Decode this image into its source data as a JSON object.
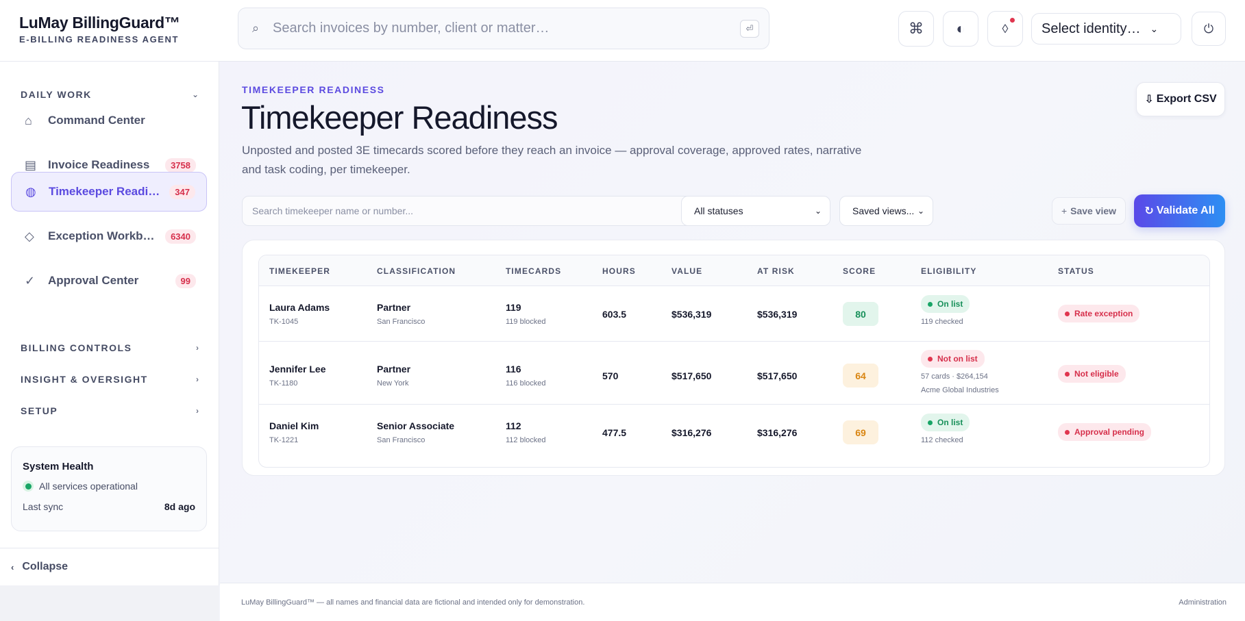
{
  "brand": {
    "name": "LuMay BillingGuard™",
    "tagline": "E-BILLING READINESS AGENT"
  },
  "header": {
    "search_placeholder": "Search invoices by number, client or matter…",
    "identity_label": "Select identity…"
  },
  "sidebar": {
    "groups": [
      {
        "label": "DAILY WORK",
        "expanded": true
      },
      {
        "label": "BILLING CONTROLS",
        "expanded": false
      },
      {
        "label": "INSIGHT & OVERSIGHT",
        "expanded": false
      },
      {
        "label": "SETUP",
        "expanded": false
      }
    ],
    "items": [
      {
        "label": "Command Center",
        "icon": "home-icon",
        "badge": ""
      },
      {
        "label": "Invoice Readiness",
        "icon": "document-list-icon",
        "badge": "3758"
      },
      {
        "label": "Timekeeper Readiness",
        "icon": "gauge-icon",
        "badge": "347",
        "active": true
      },
      {
        "label": "Exception Workbench",
        "icon": "diamond-icon",
        "badge": "6340"
      },
      {
        "label": "Approval Center",
        "icon": "check-icon",
        "badge": "99"
      }
    ],
    "health": {
      "title": "System Health",
      "status": "All services operational",
      "sync_label": "Last sync",
      "sync_value": "8d ago"
    },
    "collapse_label": "Collapse"
  },
  "main": {
    "eyebrow": "TIMEKEEPER READINESS",
    "title": "Timekeeper Readiness",
    "description": "Unposted and posted 3E timecards scored before they reach an invoice — approval coverage, approved rates, narrative and task coding, per timekeeper.",
    "export_label": "Export CSV",
    "filter_placeholder": "Search timekeeper name or number...",
    "status_select": "All statuses",
    "saved_views": "Saved views...",
    "save_view_label": "Save view",
    "validate_label": "Validate All"
  },
  "table": {
    "columns": [
      "TIMEKEEPER",
      "CLASSIFICATION",
      "TIMECARDS",
      "HOURS",
      "VALUE",
      "AT RISK",
      "SCORE",
      "ELIGIBILITY",
      "STATUS"
    ],
    "rows": [
      {
        "name": "Laura Adams",
        "id": "TK-1045",
        "classification": "Partner",
        "office": "San Francisco",
        "timecards": "119",
        "timecards_sub": "119 blocked",
        "hours": "603.5",
        "value": "$536,319",
        "at_risk": "$536,319",
        "score": "80",
        "score_level": "good",
        "eligibility": "On list",
        "eligibility_ok": true,
        "eligibility_sub": [
          "119 checked"
        ],
        "status": "Rate exception"
      },
      {
        "name": "Jennifer Lee",
        "id": "TK-1180",
        "classification": "Partner",
        "office": "New York",
        "timecards": "116",
        "timecards_sub": "116 blocked",
        "hours": "570",
        "value": "$517,650",
        "at_risk": "$517,650",
        "score": "64",
        "score_level": "warn",
        "eligibility": "Not on list",
        "eligibility_ok": false,
        "eligibility_sub": [
          "57 cards · $264,154",
          "Acme Global Industries"
        ],
        "status": "Not eligible"
      },
      {
        "name": "Daniel Kim",
        "id": "TK-1221",
        "classification": "Senior Associate",
        "office": "San Francisco",
        "timecards": "112",
        "timecards_sub": "112 blocked",
        "hours": "477.5",
        "value": "$316,276",
        "at_risk": "$316,276",
        "score": "69",
        "score_level": "warn",
        "eligibility": "On list",
        "eligibility_ok": true,
        "eligibility_sub": [
          "112 checked"
        ],
        "status": "Approval pending"
      }
    ]
  },
  "footer": {
    "disclaimer": "LuMay BillingGuard™ — all names and financial data are fictional and intended only for demonstration.",
    "right_link": "Administration"
  }
}
